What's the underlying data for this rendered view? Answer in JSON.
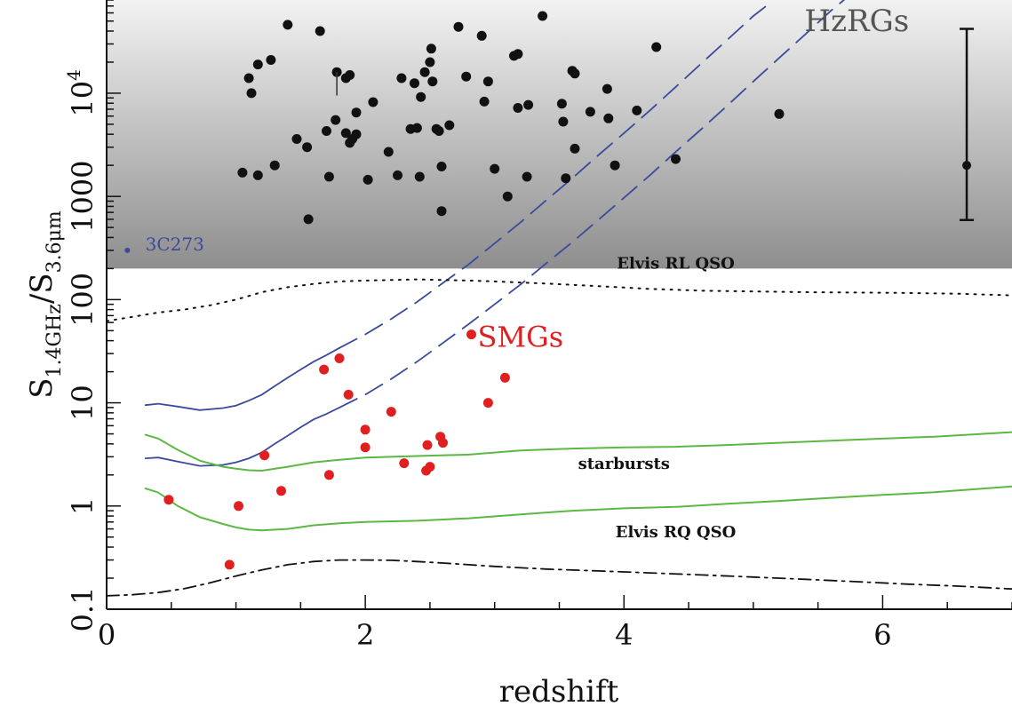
{
  "chart_data": {
    "type": "scatter",
    "xlabel": "redshift",
    "ylabel_main": "S",
    "ylabel_sub1": "1.4GHz",
    "ylabel_sub2": "3.6μm",
    "xlim": [
      0,
      7
    ],
    "ylim": [
      0.1,
      80000
    ],
    "y_scale": "log",
    "x_ticks": [
      {
        "v": 0,
        "label": "0"
      },
      {
        "v": 2,
        "label": "2"
      },
      {
        "v": 4,
        "label": "4"
      },
      {
        "v": 6,
        "label": "6"
      }
    ],
    "y_ticks": [
      {
        "v": 0.1,
        "label": "0.1"
      },
      {
        "v": 1,
        "label": "1"
      },
      {
        "v": 10,
        "label": "10"
      },
      {
        "v": 100,
        "label": "100"
      },
      {
        "v": 1000,
        "label": "1000"
      },
      {
        "v": 10000,
        "label": "10",
        "sup": "4"
      }
    ],
    "shaded_region": {
      "y_min": 200,
      "y_max": 80000,
      "color_top": "#f2f2f2",
      "color_bottom": "#8e8e8e"
    },
    "annotations": [
      {
        "text": "HzRGs",
        "x": 5.8,
        "y": 40000,
        "color": "#555555",
        "size": 34
      },
      {
        "text": "SMGs",
        "x": 3.2,
        "y": 35,
        "color": "#e02020",
        "size": 32
      },
      {
        "text": "Elvis RL QSO",
        "x": 4.4,
        "y": 200,
        "color": "#111111",
        "size": 18
      },
      {
        "text": "starbursts",
        "x": 4.0,
        "y": 2.3,
        "color": "#111111",
        "size": 18
      },
      {
        "text": "Elvis RQ QSO",
        "x": 4.4,
        "y": 0.5,
        "color": "#111111",
        "size": 18
      },
      {
        "text": "3C273",
        "x": 0.3,
        "y": 300,
        "color": "#3b4a9c",
        "size": 20
      }
    ],
    "series": [
      {
        "kind": "points",
        "color": "#111111",
        "points": [
          [
            1.1,
            14000
          ],
          [
            1.12,
            10000
          ],
          [
            1.17,
            19000
          ],
          [
            1.27,
            21000
          ],
          [
            1.4,
            46000
          ],
          [
            1.65,
            40000
          ],
          [
            1.78,
            16000
          ],
          [
            1.85,
            14000
          ],
          [
            1.88,
            15000
          ],
          [
            1.05,
            1700
          ],
          [
            1.17,
            1600
          ],
          [
            1.3,
            2000
          ],
          [
            1.47,
            3600
          ],
          [
            1.55,
            3000
          ],
          [
            1.56,
            600
          ],
          [
            1.7,
            4300
          ],
          [
            1.72,
            1550
          ],
          [
            1.77,
            5500
          ],
          [
            1.85,
            4100
          ],
          [
            1.88,
            3300
          ],
          [
            1.9,
            3600
          ],
          [
            1.93,
            4000
          ],
          [
            1.93,
            6500
          ],
          [
            2.02,
            1450
          ],
          [
            2.06,
            8200
          ],
          [
            2.18,
            2700
          ],
          [
            2.25,
            1600
          ],
          [
            2.28,
            14000
          ],
          [
            2.35,
            4500
          ],
          [
            2.38,
            12500
          ],
          [
            2.4,
            4600
          ],
          [
            2.42,
            1550
          ],
          [
            2.43,
            9200
          ],
          [
            2.46,
            16000
          ],
          [
            2.5,
            20000
          ],
          [
            2.51,
            27000
          ],
          [
            2.52,
            13000
          ],
          [
            2.55,
            4500
          ],
          [
            2.57,
            4300
          ],
          [
            2.59,
            1950
          ],
          [
            2.59,
            720
          ],
          [
            2.65,
            4900
          ],
          [
            2.72,
            44000
          ],
          [
            2.78,
            14500
          ],
          [
            2.9,
            36000
          ],
          [
            2.92,
            8300
          ],
          [
            2.95,
            13000
          ],
          [
            3.0,
            1850
          ],
          [
            3.1,
            1000
          ],
          [
            3.15,
            23000
          ],
          [
            3.18,
            24000
          ],
          [
            3.18,
            7200
          ],
          [
            3.26,
            7700
          ],
          [
            3.25,
            1550
          ],
          [
            3.37,
            56000
          ],
          [
            3.52,
            7900
          ],
          [
            3.53,
            5300
          ],
          [
            3.55,
            1500
          ],
          [
            3.6,
            16500
          ],
          [
            3.62,
            15500
          ],
          [
            3.62,
            2900
          ],
          [
            3.74,
            6600
          ],
          [
            3.87,
            11000
          ],
          [
            3.88,
            5700
          ],
          [
            3.93,
            2000
          ],
          [
            4.1,
            6800
          ],
          [
            4.25,
            28000
          ],
          [
            4.4,
            2300
          ],
          [
            5.2,
            6300
          ]
        ]
      },
      {
        "kind": "points",
        "color": "#e02020",
        "points": [
          [
            0.48,
            1.15
          ],
          [
            0.95,
            0.27
          ],
          [
            1.02,
            1.0
          ],
          [
            1.22,
            3.1
          ],
          [
            1.35,
            1.4
          ],
          [
            1.68,
            21
          ],
          [
            1.72,
            2.0
          ],
          [
            1.8,
            27
          ],
          [
            1.87,
            12
          ],
          [
            2.0,
            3.7
          ],
          [
            2.0,
            5.5
          ],
          [
            2.2,
            8.2
          ],
          [
            2.3,
            2.6
          ],
          [
            2.47,
            2.2
          ],
          [
            2.48,
            3.9
          ],
          [
            2.5,
            2.4
          ],
          [
            2.58,
            4.7
          ],
          [
            2.6,
            4.1
          ],
          [
            2.82,
            46
          ],
          [
            2.95,
            10
          ],
          [
            3.08,
            17.5
          ]
        ]
      },
      {
        "kind": "points",
        "color": "#3b4a9c",
        "points": [
          [
            0.16,
            300
          ]
        ],
        "radius": 3
      },
      {
        "kind": "line",
        "style": "solid",
        "color": "#3b4a9c",
        "width": 1.8,
        "points": [
          [
            0.3,
            9.5
          ],
          [
            0.4,
            9.8
          ],
          [
            0.55,
            9.2
          ],
          [
            0.72,
            8.5
          ],
          [
            0.9,
            8.9
          ],
          [
            1.0,
            9.4
          ],
          [
            1.1,
            10.5
          ],
          [
            1.2,
            12
          ],
          [
            1.3,
            14.5
          ],
          [
            1.4,
            17.5
          ],
          [
            1.5,
            21
          ],
          [
            1.6,
            25
          ],
          [
            1.7,
            29
          ],
          [
            1.8,
            34
          ]
        ]
      },
      {
        "kind": "line",
        "style": "dashed",
        "color": "#3b4a9c",
        "width": 1.8,
        "points": [
          [
            1.8,
            34
          ],
          [
            2.0,
            46
          ],
          [
            2.2,
            65
          ],
          [
            2.4,
            95
          ],
          [
            2.6,
            145
          ],
          [
            2.8,
            220
          ],
          [
            3.0,
            350
          ],
          [
            3.2,
            560
          ],
          [
            3.4,
            920
          ],
          [
            3.6,
            1500
          ],
          [
            3.8,
            2500
          ],
          [
            4.0,
            4100
          ],
          [
            4.2,
            6800
          ],
          [
            4.4,
            11500
          ],
          [
            4.6,
            19500
          ],
          [
            4.8,
            33000
          ],
          [
            5.0,
            56000
          ],
          [
            5.1,
            70000
          ]
        ]
      },
      {
        "kind": "line",
        "style": "solid",
        "color": "#3b4a9c",
        "width": 1.8,
        "points": [
          [
            0.3,
            2.9
          ],
          [
            0.4,
            2.95
          ],
          [
            0.55,
            2.7
          ],
          [
            0.72,
            2.45
          ],
          [
            0.9,
            2.5
          ],
          [
            1.0,
            2.65
          ],
          [
            1.1,
            2.9
          ],
          [
            1.2,
            3.3
          ],
          [
            1.3,
            4.0
          ],
          [
            1.4,
            4.8
          ],
          [
            1.5,
            5.8
          ],
          [
            1.6,
            6.9
          ],
          [
            1.7,
            7.8
          ],
          [
            1.8,
            9.0
          ]
        ]
      },
      {
        "kind": "line",
        "style": "dashed",
        "color": "#3b4a9c",
        "width": 1.8,
        "points": [
          [
            1.8,
            9.0
          ],
          [
            2.0,
            12
          ],
          [
            2.2,
            17
          ],
          [
            2.4,
            25
          ],
          [
            2.6,
            38
          ],
          [
            2.8,
            58
          ],
          [
            3.0,
            90
          ],
          [
            3.2,
            140
          ],
          [
            3.4,
            225
          ],
          [
            3.6,
            360
          ],
          [
            3.8,
            590
          ],
          [
            4.0,
            970
          ],
          [
            4.2,
            1600
          ],
          [
            4.4,
            2700
          ],
          [
            4.6,
            4500
          ],
          [
            4.8,
            7600
          ],
          [
            5.0,
            13000
          ],
          [
            5.2,
            22000
          ],
          [
            5.4,
            37000
          ],
          [
            5.6,
            63000
          ],
          [
            5.7,
            80000
          ]
        ]
      },
      {
        "kind": "line",
        "style": "solid",
        "color": "#5cb843",
        "width": 2,
        "points": [
          [
            0.3,
            4.9
          ],
          [
            0.4,
            4.5
          ],
          [
            0.55,
            3.5
          ],
          [
            0.72,
            2.75
          ],
          [
            0.9,
            2.4
          ],
          [
            1.0,
            2.3
          ],
          [
            1.1,
            2.22
          ],
          [
            1.2,
            2.2
          ],
          [
            1.4,
            2.4
          ],
          [
            1.6,
            2.65
          ],
          [
            1.8,
            2.8
          ],
          [
            2.0,
            2.95
          ],
          [
            2.4,
            3.05
          ],
          [
            2.8,
            3.15
          ],
          [
            3.2,
            3.45
          ],
          [
            3.6,
            3.6
          ],
          [
            4.0,
            3.7
          ],
          [
            4.4,
            3.75
          ],
          [
            4.8,
            3.9
          ],
          [
            5.2,
            4.1
          ],
          [
            5.6,
            4.3
          ],
          [
            6.0,
            4.5
          ],
          [
            6.4,
            4.7
          ],
          [
            7.0,
            5.2
          ]
        ]
      },
      {
        "kind": "line",
        "style": "solid",
        "color": "#5cb843",
        "width": 2,
        "points": [
          [
            0.3,
            1.48
          ],
          [
            0.4,
            1.35
          ],
          [
            0.55,
            1.0
          ],
          [
            0.72,
            0.78
          ],
          [
            0.9,
            0.67
          ],
          [
            1.0,
            0.62
          ],
          [
            1.1,
            0.59
          ],
          [
            1.2,
            0.58
          ],
          [
            1.4,
            0.6
          ],
          [
            1.6,
            0.65
          ],
          [
            1.8,
            0.68
          ],
          [
            2.0,
            0.7
          ],
          [
            2.4,
            0.72
          ],
          [
            2.8,
            0.76
          ],
          [
            3.2,
            0.83
          ],
          [
            3.6,
            0.9
          ],
          [
            4.0,
            0.95
          ],
          [
            4.4,
            0.98
          ],
          [
            4.8,
            1.05
          ],
          [
            5.2,
            1.12
          ],
          [
            5.6,
            1.2
          ],
          [
            6.0,
            1.28
          ],
          [
            6.4,
            1.36
          ],
          [
            7.0,
            1.55
          ]
        ]
      },
      {
        "kind": "line",
        "style": "dotted",
        "color": "#111111",
        "width": 2,
        "points": [
          [
            0.0,
            62
          ],
          [
            0.2,
            68
          ],
          [
            0.4,
            75
          ],
          [
            0.6,
            80
          ],
          [
            0.8,
            88
          ],
          [
            1.0,
            100
          ],
          [
            1.2,
            118
          ],
          [
            1.4,
            132
          ],
          [
            1.6,
            142
          ],
          [
            1.8,
            150
          ],
          [
            2.0,
            153
          ],
          [
            2.2,
            155
          ],
          [
            2.4,
            157
          ],
          [
            2.6,
            155
          ],
          [
            2.8,
            153
          ],
          [
            3.0,
            150
          ],
          [
            3.4,
            143
          ],
          [
            3.8,
            135
          ],
          [
            4.2,
            127
          ],
          [
            4.6,
            122
          ],
          [
            5.0,
            120
          ],
          [
            5.4,
            118
          ],
          [
            5.8,
            117
          ],
          [
            6.2,
            116
          ],
          [
            6.6,
            114
          ],
          [
            7.0,
            110
          ]
        ]
      },
      {
        "kind": "line",
        "style": "dashdot",
        "color": "#111111",
        "width": 1.8,
        "points": [
          [
            0.0,
            0.135
          ],
          [
            0.2,
            0.138
          ],
          [
            0.4,
            0.145
          ],
          [
            0.6,
            0.158
          ],
          [
            0.8,
            0.18
          ],
          [
            1.0,
            0.21
          ],
          [
            1.2,
            0.24
          ],
          [
            1.4,
            0.27
          ],
          [
            1.6,
            0.29
          ],
          [
            1.8,
            0.3
          ],
          [
            2.0,
            0.3
          ],
          [
            2.2,
            0.298
          ],
          [
            2.4,
            0.29
          ],
          [
            2.6,
            0.28
          ],
          [
            2.8,
            0.27
          ],
          [
            3.0,
            0.26
          ],
          [
            3.4,
            0.245
          ],
          [
            3.8,
            0.235
          ],
          [
            4.2,
            0.225
          ],
          [
            4.6,
            0.215
          ],
          [
            5.0,
            0.205
          ],
          [
            5.4,
            0.195
          ],
          [
            5.8,
            0.185
          ],
          [
            6.2,
            0.175
          ],
          [
            6.6,
            0.167
          ],
          [
            7.0,
            0.157
          ]
        ]
      }
    ],
    "error_bar": {
      "x": 6.65,
      "y": 2000,
      "y_low": 590,
      "y_high": 42000
    }
  }
}
